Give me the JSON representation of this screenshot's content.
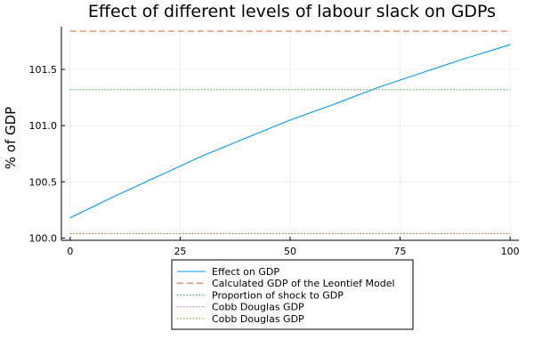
{
  "chart_data": {
    "type": "line",
    "title": "Effect of different levels of labour slack on GDPs",
    "xlabel": "",
    "ylabel": "% of GDP",
    "xlim": [
      -2,
      102
    ],
    "ylim": [
      99.98,
      101.88
    ],
    "xticks": [
      0,
      25,
      50,
      75,
      100
    ],
    "xtick_labels": [
      "0",
      "25",
      "50",
      "75",
      "100"
    ],
    "yticks": [
      100.0,
      100.5,
      101.0,
      101.5
    ],
    "ytick_labels": [
      "100.0",
      "100.5",
      "101.0",
      "101.5"
    ],
    "grid": true,
    "legend_position": "bottom-outside",
    "series": [
      {
        "name": "Effect on GDP",
        "color": "#009AFA",
        "style": "solid",
        "x": [
          0,
          10,
          20,
          30,
          40,
          50,
          60,
          70,
          80,
          90,
          100
        ],
        "y": [
          100.18,
          100.37,
          100.55,
          100.73,
          100.89,
          101.05,
          101.19,
          101.34,
          101.47,
          101.6,
          101.72
        ]
      },
      {
        "name": "Calculated GDP of the Leontief Model",
        "color": "#E26F46",
        "style": "dashed",
        "x": [
          0,
          100
        ],
        "y": [
          101.84,
          101.84
        ]
      },
      {
        "name": "Proportion of shock to GDP",
        "color": "#3DA44D",
        "style": "dotted",
        "x": [
          0,
          100
        ],
        "y": [
          101.32,
          101.32
        ]
      },
      {
        "name": "Cobb Douglas GDP",
        "color": "#C271D2",
        "style": "dotted",
        "x": [
          0,
          100
        ],
        "y": [
          100.04,
          100.04
        ]
      },
      {
        "name": "Cobb Douglas GDP",
        "color": "#AC8D18",
        "style": "dotted",
        "x": [
          0,
          100
        ],
        "y": [
          100.04,
          100.04
        ]
      }
    ]
  }
}
